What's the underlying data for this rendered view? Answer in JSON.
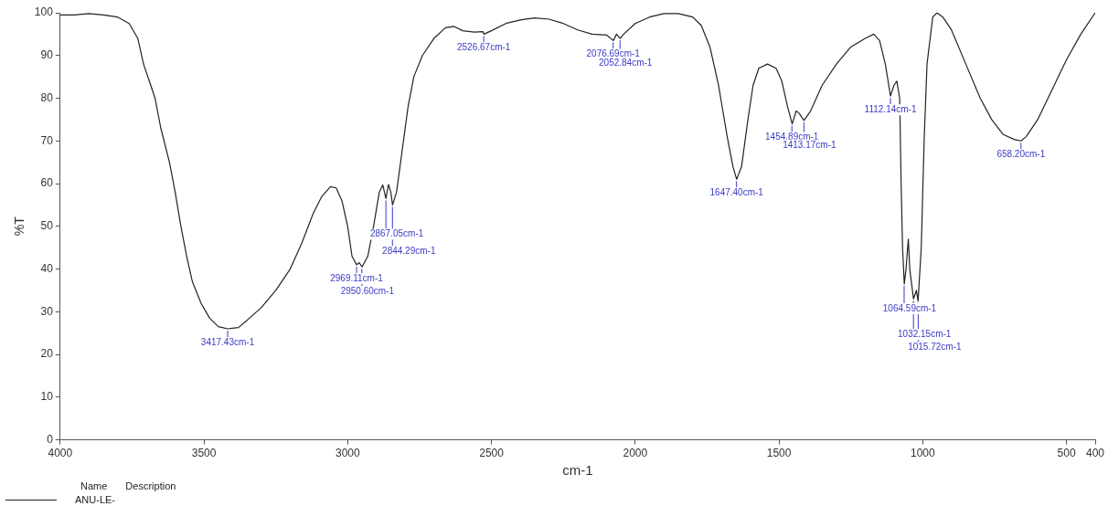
{
  "chart_data": {
    "type": "line",
    "xlabel": "cm-1",
    "ylabel": "%T",
    "xlim": [
      4000,
      400
    ],
    "xticks": [
      4000,
      3500,
      3000,
      2500,
      2000,
      1500,
      1000,
      500,
      400
    ],
    "ylim": [
      0,
      100
    ],
    "yticks": [
      0,
      10,
      20,
      30,
      40,
      50,
      60,
      70,
      80,
      90,
      100
    ],
    "grid": false,
    "legend": "bottom left",
    "legend_title": "Name",
    "marker": "none",
    "line_style": "solid",
    "series": [
      {
        "name": "ANU-LE-",
        "color": "#222222",
        "x": [
          4000,
          3950,
          3900,
          3850,
          3800,
          3760,
          3730,
          3710,
          3690,
          3670,
          3650,
          3620,
          3600,
          3580,
          3560,
          3540,
          3510,
          3480,
          3450,
          3417,
          3380,
          3350,
          3300,
          3250,
          3200,
          3160,
          3120,
          3090,
          3060,
          3040,
          3020,
          3000,
          2985,
          2969,
          2960,
          2950,
          2930,
          2910,
          2890,
          2878,
          2867,
          2858,
          2850,
          2844,
          2830,
          2810,
          2790,
          2770,
          2740,
          2700,
          2660,
          2630,
          2600,
          2560,
          2530,
          2526,
          2500,
          2450,
          2400,
          2350,
          2300,
          2250,
          2200,
          2150,
          2100,
          2076,
          2065,
          2052,
          2040,
          2000,
          1950,
          1900,
          1850,
          1800,
          1770,
          1740,
          1710,
          1680,
          1660,
          1647,
          1630,
          1610,
          1590,
          1570,
          1540,
          1510,
          1490,
          1470,
          1454,
          1440,
          1430,
          1413,
          1390,
          1350,
          1300,
          1250,
          1200,
          1170,
          1150,
          1130,
          1112,
          1100,
          1090,
          1080,
          1075,
          1070,
          1064,
          1058,
          1050,
          1045,
          1032,
          1022,
          1016,
          1005,
          995,
          985,
          965,
          950,
          930,
          900,
          850,
          800,
          760,
          720,
          680,
          658,
          640,
          600,
          550,
          500,
          450,
          400
        ],
        "values": [
          99.5,
          99.5,
          99.8,
          99.5,
          99,
          97.5,
          94,
          88,
          84,
          80,
          73,
          65,
          58,
          50,
          43,
          37,
          32,
          28.5,
          26.5,
          26,
          26.3,
          28,
          31,
          35,
          40,
          46,
          53,
          57,
          59.3,
          59,
          56,
          50,
          43,
          41,
          41.5,
          40.5,
          43,
          50,
          58,
          59.7,
          56.5,
          59.8,
          58,
          55,
          58,
          68,
          78,
          85,
          90,
          94,
          96.5,
          96.8,
          95.8,
          95.5,
          95.6,
          95,
          95.8,
          97.5,
          98.3,
          98.8,
          98.5,
          97.5,
          96,
          95,
          94.8,
          93.5,
          95,
          94,
          95,
          97.5,
          99,
          99.8,
          99.8,
          99,
          97,
          92,
          83,
          71,
          64,
          61,
          64,
          74,
          83,
          87,
          88,
          87,
          84,
          78,
          74,
          77,
          76.5,
          74.8,
          77,
          83,
          88,
          92,
          94,
          95,
          93.5,
          88,
          80.5,
          83,
          84,
          80,
          60,
          45,
          36.5,
          40,
          47,
          40,
          33,
          35,
          32.5,
          45,
          70,
          88,
          99,
          100,
          99,
          96,
          88,
          80,
          75,
          71.5,
          70.3,
          70,
          71,
          75,
          82,
          89,
          95,
          100
        ]
      }
    ],
    "annotations": [
      "Description",
      {
        "text": "3417.43cm-1",
        "x": 3417.43,
        "y": 26
      },
      {
        "text": "2969.11cm-1",
        "x": 2969.11,
        "y": 41
      },
      {
        "text": "2950.60cm-1",
        "x": 2950.6,
        "y": 40.5
      },
      {
        "text": "2867.05cm-1",
        "x": 2867.05,
        "y": 56.5
      },
      {
        "text": "2844.29cm-1",
        "x": 2844.29,
        "y": 55
      },
      {
        "text": "2526.67cm-1",
        "x": 2526.67,
        "y": 95
      },
      {
        "text": "2076.69cm-1",
        "x": 2076.69,
        "y": 93.5
      },
      {
        "text": "2052.84cm-1",
        "x": 2052.84,
        "y": 94
      },
      {
        "text": "1647.40cm-1",
        "x": 1647.4,
        "y": 61
      },
      {
        "text": "1454.89cm-1",
        "x": 1454.89,
        "y": 74
      },
      {
        "text": "1413.17cm-1",
        "x": 1413.17,
        "y": 74.8
      },
      {
        "text": "1112.14cm-1",
        "x": 1112.14,
        "y": 80.5
      },
      {
        "text": "1064.59cm-1",
        "x": 1064.59,
        "y": 36.5
      },
      {
        "text": "1032.15cm-1",
        "x": 1032.15,
        "y": 33
      },
      {
        "text": "1015.72cm-1",
        "x": 1015.72,
        "y": 32.5
      },
      {
        "text": "658.20cm-1",
        "x": 658.2,
        "y": 70
      }
    ]
  }
}
